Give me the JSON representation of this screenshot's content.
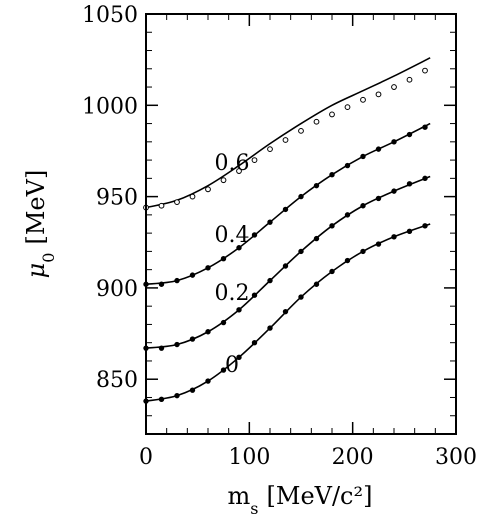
{
  "chart_data": {
    "type": "line",
    "xlabel_main": "m",
    "xlabel_sub": "s",
    "xlabel_unit": "[MeV/c²]",
    "ylabel_main": "μ",
    "ylabel_sub": "0",
    "ylabel_unit": "[MeV]",
    "xlim": [
      0,
      300
    ],
    "ylim": [
      820,
      1050
    ],
    "xticks": [
      0,
      100,
      200,
      300
    ],
    "yticks": [
      850,
      900,
      950,
      1000,
      1050
    ],
    "grid": false,
    "series": [
      {
        "name": "0",
        "style": "line+markers",
        "line": {
          "x": [
            0,
            30,
            60,
            90,
            120,
            150,
            180,
            210,
            240,
            275
          ],
          "y": [
            838,
            841,
            849,
            862,
            878,
            895,
            909,
            920,
            928,
            935
          ]
        },
        "points": {
          "x": [
            0,
            15,
            30,
            45,
            60,
            75,
            90,
            105,
            120,
            135,
            150,
            165,
            180,
            195,
            210,
            225,
            240,
            255,
            270
          ],
          "y": [
            838,
            839,
            841,
            844,
            849,
            855,
            862,
            870,
            878,
            887,
            895,
            902,
            909,
            915,
            920,
            924,
            928,
            931,
            934
          ]
        }
      },
      {
        "name": "0.2",
        "style": "line+markers",
        "line": {
          "x": [
            0,
            30,
            60,
            90,
            120,
            150,
            180,
            210,
            240,
            275
          ],
          "y": [
            867,
            869,
            876,
            888,
            904,
            920,
            934,
            945,
            953,
            961
          ]
        },
        "points": {
          "x": [
            0,
            15,
            30,
            45,
            60,
            75,
            90,
            105,
            120,
            135,
            150,
            165,
            180,
            195,
            210,
            225,
            240,
            255,
            270
          ],
          "y": [
            867,
            867,
            869,
            872,
            876,
            881,
            888,
            896,
            904,
            912,
            920,
            927,
            934,
            940,
            945,
            949,
            953,
            957,
            960
          ]
        }
      },
      {
        "name": "0.4",
        "style": "line+markers",
        "line": {
          "x": [
            0,
            30,
            60,
            90,
            120,
            150,
            180,
            210,
            240,
            275
          ],
          "y": [
            902,
            904,
            911,
            922,
            936,
            950,
            962,
            972,
            980,
            990
          ]
        },
        "points": {
          "x": [
            0,
            15,
            30,
            45,
            60,
            75,
            90,
            105,
            120,
            135,
            150,
            165,
            180,
            195,
            210,
            225,
            240,
            255,
            270
          ],
          "y": [
            902,
            902,
            904,
            907,
            911,
            916,
            922,
            929,
            936,
            943,
            950,
            956,
            962,
            967,
            972,
            976,
            980,
            984,
            988
          ]
        }
      },
      {
        "name": "0.6",
        "style": "line+open-markers",
        "line": {
          "x": [
            0,
            30,
            60,
            90,
            120,
            150,
            180,
            210,
            240,
            275
          ],
          "y": [
            944,
            948,
            956,
            967,
            979,
            990,
            1000,
            1008,
            1016,
            1026
          ]
        },
        "points": {
          "x": [
            0,
            15,
            30,
            45,
            60,
            75,
            90,
            105,
            120,
            135,
            150,
            165,
            180,
            195,
            210,
            225,
            240,
            255,
            270
          ],
          "y": [
            944,
            945,
            947,
            950,
            954,
            959,
            964,
            970,
            976,
            981,
            986,
            991,
            995,
            999,
            1003,
            1006,
            1010,
            1014,
            1019
          ]
        }
      }
    ],
    "colors": {
      "line": "#000000",
      "marker_fill": "#000000",
      "open_marker_fill": "#ffffff"
    }
  }
}
